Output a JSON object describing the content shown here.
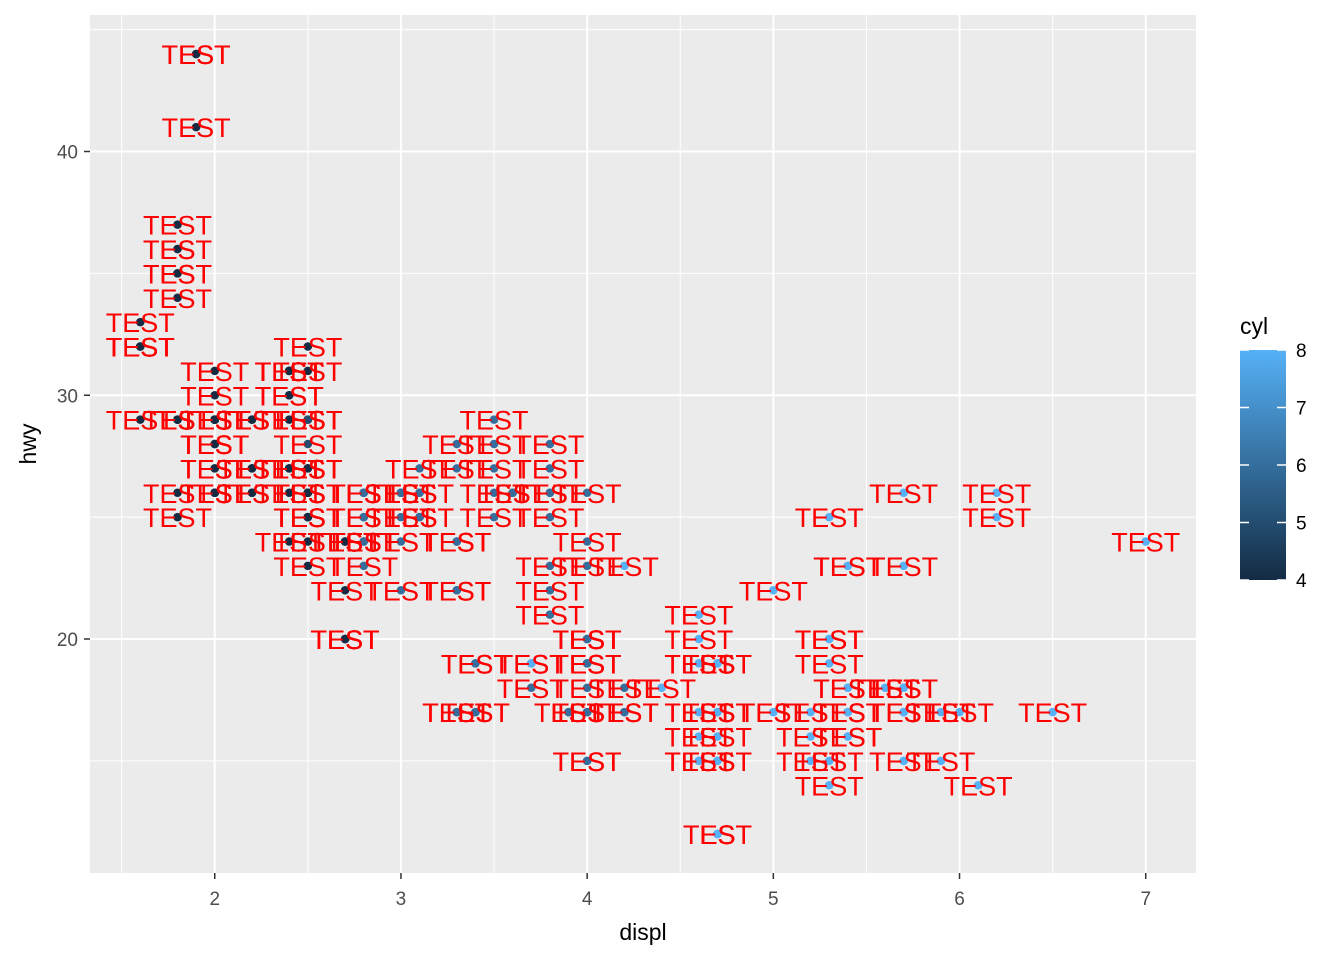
{
  "chart_data": {
    "type": "scatter",
    "title": "",
    "xlabel": "displ",
    "ylabel": "hwy",
    "xlim": [
      1.33,
      7.27
    ],
    "ylim": [
      10.4,
      45.6
    ],
    "x_ticks": [
      2,
      3,
      4,
      5,
      6,
      7
    ],
    "y_ticks": [
      20,
      30,
      40
    ],
    "grid": true,
    "point_label": "TEST",
    "label_color": "#ff0000",
    "colors": {
      "panel_background": "#ebebeb",
      "grid": "#ffffff",
      "low": "#132b43",
      "high": "#56b1f7"
    },
    "legend": {
      "title": "cyl",
      "position": "right",
      "type": "colorbar",
      "range": [
        4,
        8
      ],
      "ticks": [
        4,
        5,
        6,
        7,
        8
      ]
    },
    "points": [
      [
        1.8,
        29,
        4
      ],
      [
        1.8,
        29,
        4
      ],
      [
        2.0,
        31,
        4
      ],
      [
        2.0,
        30,
        4
      ],
      [
        2.8,
        26,
        6
      ],
      [
        2.8,
        26,
        6
      ],
      [
        3.1,
        27,
        6
      ],
      [
        1.8,
        26,
        4
      ],
      [
        1.8,
        25,
        4
      ],
      [
        2.0,
        28,
        4
      ],
      [
        2.0,
        27,
        4
      ],
      [
        2.8,
        25,
        6
      ],
      [
        2.8,
        25,
        6
      ],
      [
        3.1,
        25,
        6
      ],
      [
        3.1,
        25,
        6
      ],
      [
        2.8,
        24,
        6
      ],
      [
        3.1,
        25,
        6
      ],
      [
        4.2,
        23,
        8
      ],
      [
        5.3,
        20,
        8
      ],
      [
        5.3,
        15,
        8
      ],
      [
        5.3,
        20,
        8
      ],
      [
        5.7,
        17,
        8
      ],
      [
        6.0,
        17,
        8
      ],
      [
        5.7,
        26,
        8
      ],
      [
        5.7,
        23,
        8
      ],
      [
        6.2,
        26,
        8
      ],
      [
        6.2,
        25,
        8
      ],
      [
        7.0,
        24,
        8
      ],
      [
        5.3,
        19,
        8
      ],
      [
        5.3,
        14,
        8
      ],
      [
        5.7,
        15,
        8
      ],
      [
        6.5,
        17,
        8
      ],
      [
        2.4,
        27,
        4
      ],
      [
        2.4,
        30,
        4
      ],
      [
        3.1,
        26,
        6
      ],
      [
        3.5,
        29,
        6
      ],
      [
        3.6,
        26,
        6
      ],
      [
        2.4,
        24,
        4
      ],
      [
        3.0,
        24,
        6
      ],
      [
        3.3,
        22,
        6
      ],
      [
        3.3,
        22,
        6
      ],
      [
        3.3,
        24,
        6
      ],
      [
        3.3,
        24,
        6
      ],
      [
        3.3,
        24,
        6
      ],
      [
        3.8,
        22,
        6
      ],
      [
        3.8,
        21,
        6
      ],
      [
        3.8,
        23,
        6
      ],
      [
        4.0,
        23,
        6
      ],
      [
        3.7,
        19,
        6
      ],
      [
        3.7,
        18,
        6
      ],
      [
        3.9,
        17,
        6
      ],
      [
        3.9,
        17,
        6
      ],
      [
        4.7,
        19,
        8
      ],
      [
        4.7,
        19,
        8
      ],
      [
        4.7,
        12,
        8
      ],
      [
        5.2,
        17,
        8
      ],
      [
        5.2,
        15,
        8
      ],
      [
        5.7,
        17,
        8
      ],
      [
        5.9,
        17,
        8
      ],
      [
        4.7,
        12,
        8
      ],
      [
        4.7,
        17,
        8
      ],
      [
        4.7,
        16,
        8
      ],
      [
        4.7,
        12,
        8
      ],
      [
        4.7,
        15,
        8
      ],
      [
        5.2,
        16,
        8
      ],
      [
        5.7,
        17,
        8
      ],
      [
        5.9,
        15,
        8
      ],
      [
        4.6,
        17,
        8
      ],
      [
        5.4,
        17,
        8
      ],
      [
        5.4,
        18,
        8
      ],
      [
        4.0,
        17,
        6
      ],
      [
        4.0,
        19,
        6
      ],
      [
        4.0,
        17,
        6
      ],
      [
        4.0,
        19,
        6
      ],
      [
        4.6,
        19,
        8
      ],
      [
        5.0,
        17,
        8
      ],
      [
        4.2,
        17,
        6
      ],
      [
        4.2,
        17,
        6
      ],
      [
        4.6,
        16,
        8
      ],
      [
        4.6,
        17,
        8
      ],
      [
        4.6,
        15,
        8
      ],
      [
        5.4,
        17,
        8
      ],
      [
        5.4,
        16,
        8
      ],
      [
        3.8,
        26,
        6
      ],
      [
        3.8,
        25,
        6
      ],
      [
        4.0,
        26,
        6
      ],
      [
        4.0,
        24,
        6
      ],
      [
        4.6,
        21,
        8
      ],
      [
        5.0,
        22,
        8
      ],
      [
        5.4,
        23,
        8
      ],
      [
        5.4,
        23,
        8
      ],
      [
        4.0,
        20,
        6
      ],
      [
        4.0,
        15,
        6
      ],
      [
        4.6,
        20,
        8
      ],
      [
        1.6,
        33,
        4
      ],
      [
        1.6,
        32,
        4
      ],
      [
        1.6,
        32,
        4
      ],
      [
        1.6,
        29,
        4
      ],
      [
        1.6,
        32,
        4
      ],
      [
        1.8,
        34,
        4
      ],
      [
        1.8,
        36,
        4
      ],
      [
        1.8,
        36,
        4
      ],
      [
        2.0,
        29,
        4
      ],
      [
        2.4,
        26,
        4
      ],
      [
        2.4,
        27,
        4
      ],
      [
        2.4,
        30,
        4
      ],
      [
        2.4,
        31,
        4
      ],
      [
        2.5,
        26,
        4
      ],
      [
        2.5,
        26,
        4
      ],
      [
        3.3,
        28,
        6
      ],
      [
        2.0,
        26,
        4
      ],
      [
        2.0,
        29,
        4
      ],
      [
        2.0,
        28,
        4
      ],
      [
        2.0,
        27,
        4
      ],
      [
        2.7,
        24,
        4
      ],
      [
        2.7,
        24,
        4
      ],
      [
        2.7,
        24,
        4
      ],
      [
        3.0,
        22,
        6
      ],
      [
        3.7,
        19,
        8
      ],
      [
        4.0,
        20,
        8
      ],
      [
        4.7,
        17,
        8
      ],
      [
        4.7,
        12,
        8
      ],
      [
        4.7,
        19,
        8
      ],
      [
        5.7,
        18,
        8
      ],
      [
        6.1,
        14,
        8
      ],
      [
        4.0,
        15,
        6
      ],
      [
        4.2,
        18,
        6
      ],
      [
        4.4,
        18,
        8
      ],
      [
        4.6,
        15,
        8
      ],
      [
        5.4,
        17,
        8
      ],
      [
        5.4,
        16,
        8
      ],
      [
        5.4,
        18,
        8
      ],
      [
        4.0,
        17,
        6
      ],
      [
        4.0,
        19,
        6
      ],
      [
        4.6,
        19,
        8
      ],
      [
        5.0,
        17,
        8
      ],
      [
        2.4,
        29,
        4
      ],
      [
        2.4,
        27,
        4
      ],
      [
        2.5,
        31,
        4
      ],
      [
        2.5,
        32,
        4
      ],
      [
        3.5,
        27,
        6
      ],
      [
        3.5,
        26,
        6
      ],
      [
        3.0,
        26,
        6
      ],
      [
        3.0,
        25,
        6
      ],
      [
        3.5,
        25,
        6
      ],
      [
        3.3,
        17,
        6
      ],
      [
        3.3,
        17,
        6
      ],
      [
        4.0,
        20,
        6
      ],
      [
        5.6,
        18,
        8
      ],
      [
        3.1,
        26,
        6
      ],
      [
        3.8,
        26,
        6
      ],
      [
        3.8,
        27,
        6
      ],
      [
        3.8,
        28,
        6
      ],
      [
        5.3,
        25,
        8
      ],
      [
        2.5,
        25,
        4
      ],
      [
        2.5,
        24,
        4
      ],
      [
        2.5,
        27,
        4
      ],
      [
        2.5,
        25,
        4
      ],
      [
        2.5,
        26,
        4
      ],
      [
        2.5,
        23,
        4
      ],
      [
        2.2,
        26,
        4
      ],
      [
        2.2,
        26,
        4
      ],
      [
        2.5,
        26,
        4
      ],
      [
        2.5,
        26,
        4
      ],
      [
        2.5,
        25,
        4
      ],
      [
        2.5,
        27,
        4
      ],
      [
        2.5,
        25,
        4
      ],
      [
        2.5,
        27,
        4
      ],
      [
        2.7,
        20,
        4
      ],
      [
        2.7,
        20,
        4
      ],
      [
        3.4,
        19,
        6
      ],
      [
        3.4,
        17,
        6
      ],
      [
        4.0,
        20,
        6
      ],
      [
        4.7,
        17,
        8
      ],
      [
        2.2,
        29,
        4
      ],
      [
        2.2,
        27,
        4
      ],
      [
        2.4,
        31,
        4
      ],
      [
        2.4,
        31,
        4
      ],
      [
        3.0,
        26,
        6
      ],
      [
        3.0,
        26,
        6
      ],
      [
        3.5,
        28,
        6
      ],
      [
        2.2,
        27,
        4
      ],
      [
        2.2,
        29,
        4
      ],
      [
        2.4,
        31,
        4
      ],
      [
        2.4,
        31,
        4
      ],
      [
        3.0,
        26,
        6
      ],
      [
        3.0,
        26,
        6
      ],
      [
        3.3,
        27,
        6
      ],
      [
        1.8,
        35,
        4
      ],
      [
        1.8,
        37,
        4
      ],
      [
        1.8,
        35,
        4
      ],
      [
        4.7,
        15,
        8
      ],
      [
        5.7,
        18,
        8
      ],
      [
        2.7,
        20,
        4
      ],
      [
        2.7,
        20,
        4
      ],
      [
        2.7,
        22,
        4
      ],
      [
        3.4,
        17,
        6
      ],
      [
        3.4,
        19,
        6
      ],
      [
        4.0,
        18,
        6
      ],
      [
        4.0,
        20,
        6
      ],
      [
        2.0,
        29,
        4
      ],
      [
        2.0,
        26,
        4
      ],
      [
        2.0,
        29,
        4
      ],
      [
        2.0,
        29,
        4
      ],
      [
        2.8,
        24,
        6
      ],
      [
        1.9,
        44,
        4
      ],
      [
        2.0,
        29,
        4
      ],
      [
        2.0,
        26,
        4
      ],
      [
        2.0,
        29,
        4
      ],
      [
        2.0,
        29,
        4
      ],
      [
        2.5,
        29,
        5
      ],
      [
        2.5,
        29,
        5
      ],
      [
        2.8,
        23,
        6
      ],
      [
        2.8,
        24,
        6
      ],
      [
        1.9,
        44,
        4
      ],
      [
        1.9,
        41,
        4
      ],
      [
        2.0,
        29,
        4
      ],
      [
        2.0,
        26,
        4
      ],
      [
        2.5,
        28,
        5
      ],
      [
        2.5,
        29,
        5
      ],
      [
        1.8,
        29,
        4
      ],
      [
        1.8,
        29,
        4
      ],
      [
        2.0,
        28,
        4
      ],
      [
        2.0,
        29,
        4
      ],
      [
        2.8,
        26,
        6
      ],
      [
        2.8,
        26,
        6
      ],
      [
        3.6,
        26,
        6
      ]
    ]
  }
}
